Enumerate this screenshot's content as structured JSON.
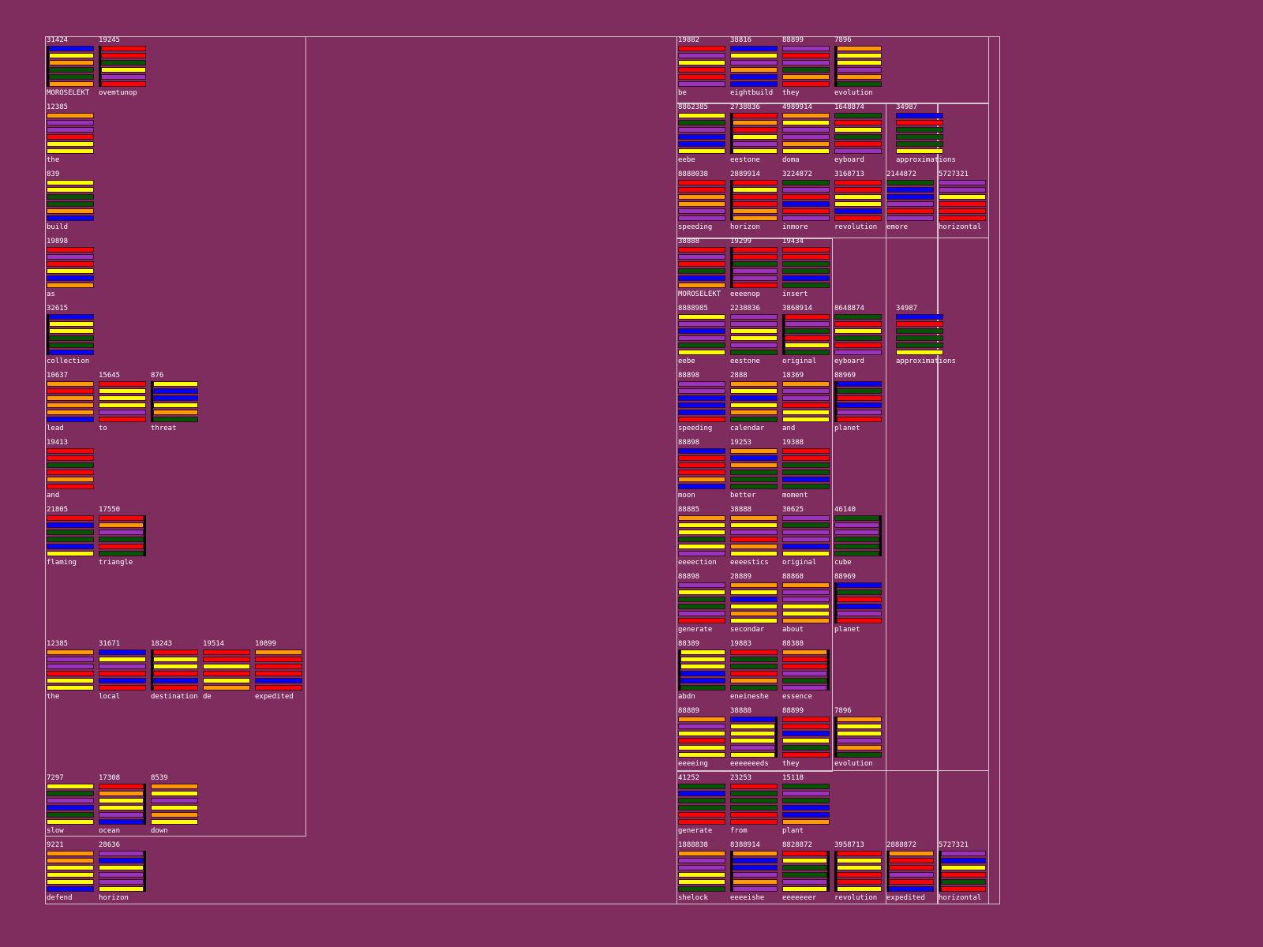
{
  "colors": {
    "background": "#7e2d5e",
    "frame": "#d8c4d0",
    "palette": {
      "b": "#0000ff",
      "y": "#ffff00",
      "o": "#ff9900",
      "r": "#ff0000",
      "g": "#005500",
      "p": "#9933bb"
    }
  },
  "tiles": [
    {
      "num": "31424",
      "word": "MOROSELEKT",
      "bars": "byoggo",
      "edge": "l"
    },
    {
      "num": "19245",
      "word": "ovemtunop",
      "bars": "rrgypr",
      "edge": "l"
    },
    {
      "num": "12385",
      "word": "the",
      "bars": "oppryy",
      "edge": ""
    },
    {
      "num": "839",
      "word": "build",
      "bars": "yyggob",
      "edge": ""
    },
    {
      "num": "19898",
      "word": "as",
      "bars": "rprybo",
      "edge": ""
    },
    {
      "num": "32615",
      "word": "collection",
      "bars": "byyggb",
      "edge": "l"
    },
    {
      "num": "10637",
      "word": "lead",
      "bars": "orooob",
      "edge": ""
    },
    {
      "num": "15645",
      "word": "to",
      "bars": "ryyypr",
      "edge": ""
    },
    {
      "num": "876",
      "word": "threat",
      "bars": "ybbyog",
      "edge": "l"
    },
    {
      "num": "19413",
      "word": "and",
      "bars": "rrgror",
      "edge": ""
    },
    {
      "num": "21805",
      "word": "flaming",
      "bars": "rbggby",
      "edge": ""
    },
    {
      "num": "17550",
      "word": "triangle",
      "bars": "ropgrg",
      "edge": "r"
    },
    {
      "num": "12385",
      "word": "the",
      "bars": "oppryy",
      "edge": ""
    },
    {
      "num": "31671",
      "word": "local",
      "bars": "byprbr",
      "edge": ""
    },
    {
      "num": "18243",
      "word": "destination",
      "bars": "ryyrbr",
      "edge": "l"
    },
    {
      "num": "19514",
      "word": "de",
      "bars": "rryryo",
      "edge": ""
    },
    {
      "num": "10899",
      "word": "expedited",
      "bars": "orrrbr",
      "edge": ""
    },
    {
      "num": "7297",
      "word": "slow",
      "bars": "ygpbgy",
      "edge": ""
    },
    {
      "num": "17308",
      "word": "ocean",
      "bars": "royypb",
      "edge": "r"
    },
    {
      "num": "8539",
      "word": "down",
      "bars": "oypyoy",
      "edge": ""
    },
    {
      "num": "9221",
      "word": "defend",
      "bars": "ooyyyb",
      "edge": ""
    },
    {
      "num": "28636",
      "word": "horizon",
      "bars": "pbyppy",
      "edge": "r"
    },
    {
      "num": "19882",
      "word": "be",
      "bars": "rpyrrp",
      "edge": ""
    },
    {
      "num": "38816",
      "word": "eightbuild",
      "bars": "bypobb",
      "edge": ""
    },
    {
      "num": "88899",
      "word": "they",
      "bars": "prpgor",
      "edge": ""
    },
    {
      "num": "7896",
      "word": "evolution",
      "bars": "oyypog",
      "edge": "l"
    },
    {
      "num": "8862385",
      "word": "eebe",
      "bars": "ygpbby",
      "edge": ""
    },
    {
      "num": "2738836",
      "word": "eestone",
      "bars": "rorypy",
      "edge": "l"
    },
    {
      "num": "4989914",
      "word": "doma",
      "bars": "oyppoy",
      "edge": ""
    },
    {
      "num": "1648874",
      "word": "eyboard",
      "bars": "grygrp",
      "edge": ""
    },
    {
      "num": "34987",
      "word": "approximations",
      "bars": "brgggy",
      "edge": ""
    },
    {
      "num": "8888038",
      "word": "speeding",
      "bars": "rroopp",
      "edge": ""
    },
    {
      "num": "2889914",
      "word": "horizon",
      "bars": "ryrroo",
      "edge": "l"
    },
    {
      "num": "3224872",
      "word": "inmore",
      "bars": "gprbrp",
      "edge": ""
    },
    {
      "num": "3168713",
      "word": "revolution",
      "bars": "rryybr",
      "edge": ""
    },
    {
      "num": "2144872",
      "word": "emore",
      "bars": "gbbprp",
      "edge": ""
    },
    {
      "num": "5727321",
      "word": "horizontal",
      "bars": "ppyrrr",
      "edge": ""
    },
    {
      "num": "38888",
      "word": "MOROSELEKT",
      "bars": "rprgbo",
      "edge": ""
    },
    {
      "num": "19299",
      "word": "eeeenop",
      "bars": "rrgppr",
      "edge": "l"
    },
    {
      "num": "19434",
      "word": "insert",
      "bars": "rrggbg",
      "edge": ""
    },
    {
      "num": "8888985",
      "word": "eebe",
      "bars": "ypbpgy",
      "edge": ""
    },
    {
      "num": "2238836",
      "word": "eestone",
      "bars": "ppyypg",
      "edge": ""
    },
    {
      "num": "3868914",
      "word": "original",
      "bars": "rpgryg",
      "edge": "l"
    },
    {
      "num": "8648874",
      "word": "eyboard",
      "bars": "grygrp",
      "edge": ""
    },
    {
      "num": "34987",
      "word": "approximations",
      "bars": "brgggy",
      "edge": ""
    },
    {
      "num": "88898",
      "word": "speeding",
      "bars": "ppbbbr",
      "edge": ""
    },
    {
      "num": "2888",
      "word": "calendar",
      "bars": "oybyog",
      "edge": ""
    },
    {
      "num": "18369",
      "word": "and",
      "bars": "oppryy",
      "edge": ""
    },
    {
      "num": "88969",
      "word": "planet",
      "bars": "bgrbpr",
      "edge": "l"
    },
    {
      "num": "88898",
      "word": "moon",
      "bars": "brrrob",
      "edge": ""
    },
    {
      "num": "19253",
      "word": "better",
      "bars": "oboggg",
      "edge": ""
    },
    {
      "num": "19388",
      "word": "moment",
      "bars": "rrggbg",
      "edge": ""
    },
    {
      "num": "88885",
      "word": "eeeection",
      "bars": "oyygyp",
      "edge": ""
    },
    {
      "num": "38888",
      "word": "eeeestics",
      "bars": "oyproy",
      "edge": ""
    },
    {
      "num": "30625",
      "word": "original",
      "bars": "pgppby",
      "edge": ""
    },
    {
      "num": "46140",
      "word": "cube",
      "bars": "gppggg",
      "edge": "r"
    },
    {
      "num": "88898",
      "word": "generate",
      "bars": "pyggpr",
      "edge": ""
    },
    {
      "num": "28889",
      "word": "secondar",
      "bars": "oybyoy",
      "edge": ""
    },
    {
      "num": "88868",
      "word": "about",
      "bars": "oppyyo",
      "edge": ""
    },
    {
      "num": "88969",
      "word": "planet",
      "bars": "bgrbpr",
      "edge": "l"
    },
    {
      "num": "88389",
      "word": "abdn",
      "bars": "yyybbg",
      "edge": "l"
    },
    {
      "num": "19883",
      "word": "eneineshe",
      "bars": "rggrog",
      "edge": ""
    },
    {
      "num": "88388",
      "word": "essence",
      "bars": "orrpgp",
      "edge": "r"
    },
    {
      "num": "88889",
      "word": "eeeeing",
      "bars": "opyryy",
      "edge": ""
    },
    {
      "num": "38888",
      "word": "eeeeeeeds",
      "bars": "byyypy",
      "edge": "r"
    },
    {
      "num": "88899",
      "word": "they",
      "bars": "rrbygr",
      "edge": ""
    },
    {
      "num": "7896",
      "word": "evolution",
      "bars": "oyypog",
      "edge": "l"
    },
    {
      "num": "41252",
      "word": "generate",
      "bars": "gbggrr",
      "edge": ""
    },
    {
      "num": "23253",
      "word": "from",
      "bars": "rgggrr",
      "edge": ""
    },
    {
      "num": "15118",
      "word": "plant",
      "bars": "gpgbbo",
      "edge": ""
    },
    {
      "num": "1888838",
      "word": "shelock",
      "bars": "oppyyg",
      "edge": ""
    },
    {
      "num": "8388914",
      "word": "eeeeishe",
      "bars": "obbpop",
      "edge": "l"
    },
    {
      "num": "8828872",
      "word": "eeeeeeer",
      "bars": "ryggpy",
      "edge": "r"
    },
    {
      "num": "3958713",
      "word": "revolution",
      "bars": "ryyrry",
      "edge": "l"
    },
    {
      "num": "2888872",
      "word": "expedited",
      "bars": "orrprb",
      "edge": "l"
    },
    {
      "num": "5727321",
      "word": "horizontal",
      "bars": "pbyrgr",
      "edge": "l"
    }
  ]
}
